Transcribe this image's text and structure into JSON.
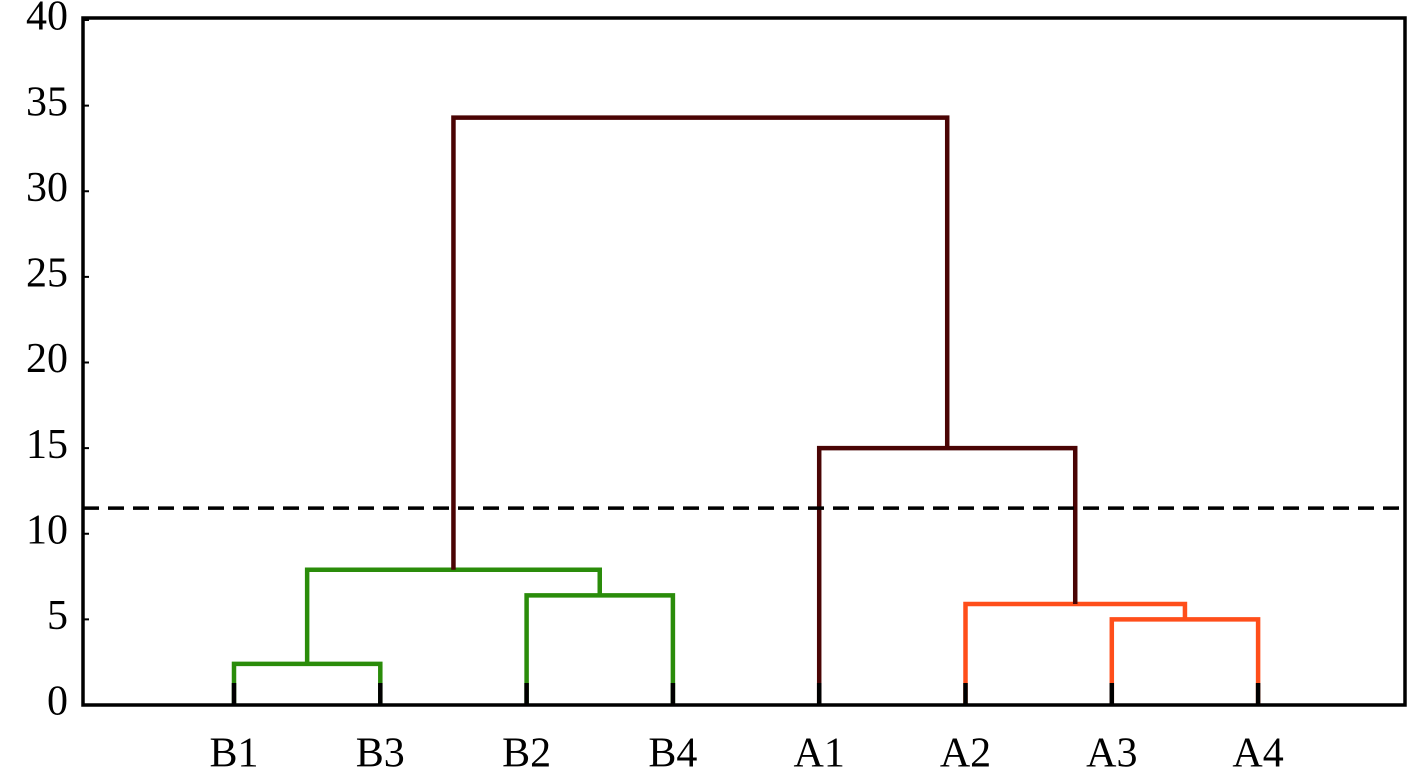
{
  "chart_data": {
    "type": "dendrogram",
    "categories": [
      "B1",
      "B3",
      "B2",
      "B4",
      "A1",
      "A2",
      "A3",
      "A4"
    ],
    "linkage": [
      [
        0,
        1,
        2.4
      ],
      [
        2,
        3,
        6.4
      ],
      [
        8,
        9,
        7.9
      ],
      [
        6,
        7,
        5.0
      ],
      [
        5,
        11,
        5.9
      ],
      [
        4,
        12,
        15
      ],
      [
        10,
        13,
        34.3
      ]
    ],
    "link_colors": [
      "#2a8c0a",
      "#2a8c0a",
      "#2a8c0a",
      "#ff4e1a",
      "#ff4e1a",
      "#4a0404",
      "#4a0404"
    ],
    "threshold": 11.5,
    "threshold_color": "#000000",
    "ylim": [
      0,
      40
    ],
    "yticks": [
      0,
      5,
      10,
      15,
      20,
      25,
      30,
      35,
      40
    ],
    "grid": false
  }
}
